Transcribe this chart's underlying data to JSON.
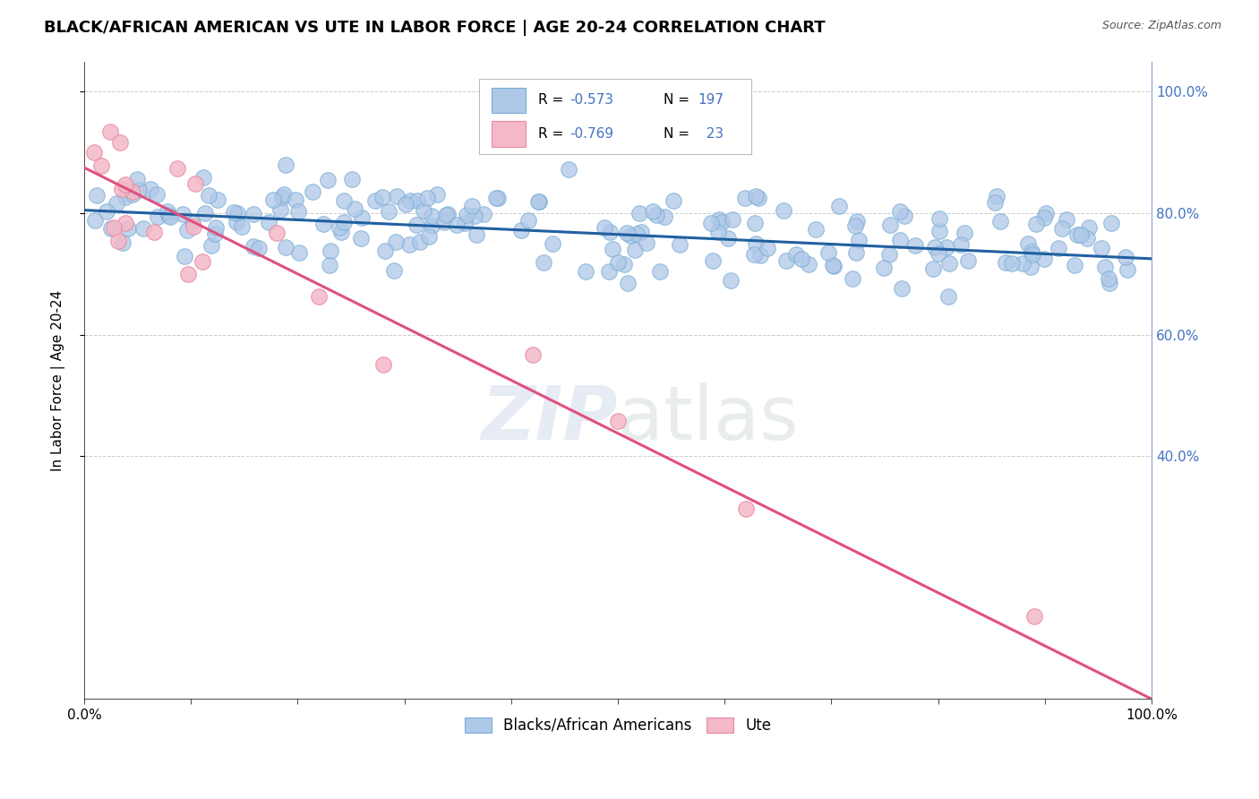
{
  "title": "BLACK/AFRICAN AMERICAN VS UTE IN LABOR FORCE | AGE 20-24 CORRELATION CHART",
  "source": "Source: ZipAtlas.com",
  "ylabel": "In Labor Force | Age 20-24",
  "watermark_zip": "ZIP",
  "watermark_atlas": "atlas",
  "xlim": [
    0.0,
    1.0
  ],
  "ylim": [
    0.0,
    1.05
  ],
  "blue_R": "-0.573",
  "blue_N": "197",
  "pink_R": "-0.769",
  "pink_N": "23",
  "blue_color": "#aec8e8",
  "blue_edge_color": "#7aadd4",
  "pink_color": "#f4b8c8",
  "pink_edge_color": "#e88aa0",
  "blue_line_color": "#2060a0",
  "pink_line_color": "#e05080",
  "legend_label_blue": "Blacks/African Americans",
  "legend_label_pink": "Ute",
  "blue_trend_x": [
    0.0,
    1.0
  ],
  "blue_trend_y": [
    0.805,
    0.725
  ],
  "pink_trend_x": [
    0.0,
    1.0
  ],
  "pink_trend_y": [
    0.875,
    0.0
  ],
  "grid_color": "#cccccc",
  "background_color": "#ffffff",
  "title_fontsize": 13,
  "label_fontsize": 11,
  "tick_fontsize": 11,
  "legend_fontsize": 12,
  "right_tick_color": "#4472c4",
  "stat_text_color": "#4472c4"
}
